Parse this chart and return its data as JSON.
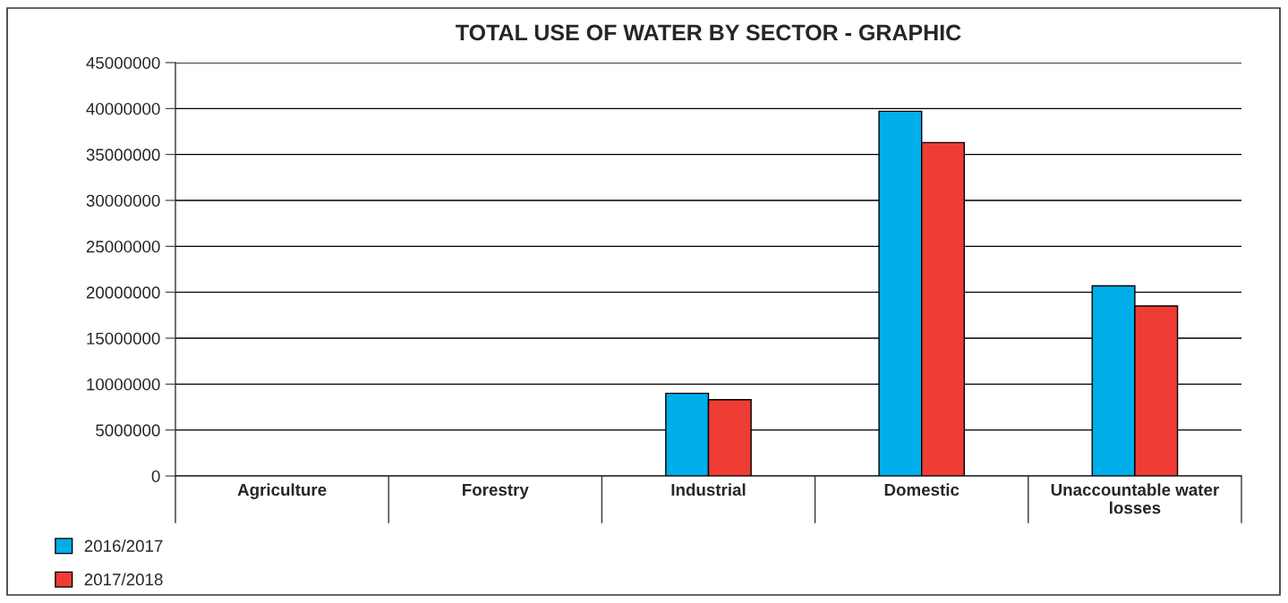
{
  "chart_data": {
    "type": "bar",
    "title": "TOTAL USE OF WATER BY SECTOR - GRAPHIC",
    "categories": [
      "Agriculture",
      "Forestry",
      "Industrial",
      "Domestic",
      "Unaccountable water losses"
    ],
    "series": [
      {
        "name": "2016/2017",
        "color": "#00aeea",
        "values": [
          0,
          0,
          9000000,
          39700000,
          20700000
        ]
      },
      {
        "name": "2017/2018",
        "color": "#ef3d36",
        "values": [
          0,
          0,
          8300000,
          36300000,
          18500000
        ]
      }
    ],
    "ylim": [
      0,
      45000000
    ],
    "yticks": [
      0,
      5000000,
      10000000,
      15000000,
      20000000,
      25000000,
      30000000,
      35000000,
      40000000,
      45000000
    ],
    "grid": "y",
    "legend": "bottom left"
  }
}
